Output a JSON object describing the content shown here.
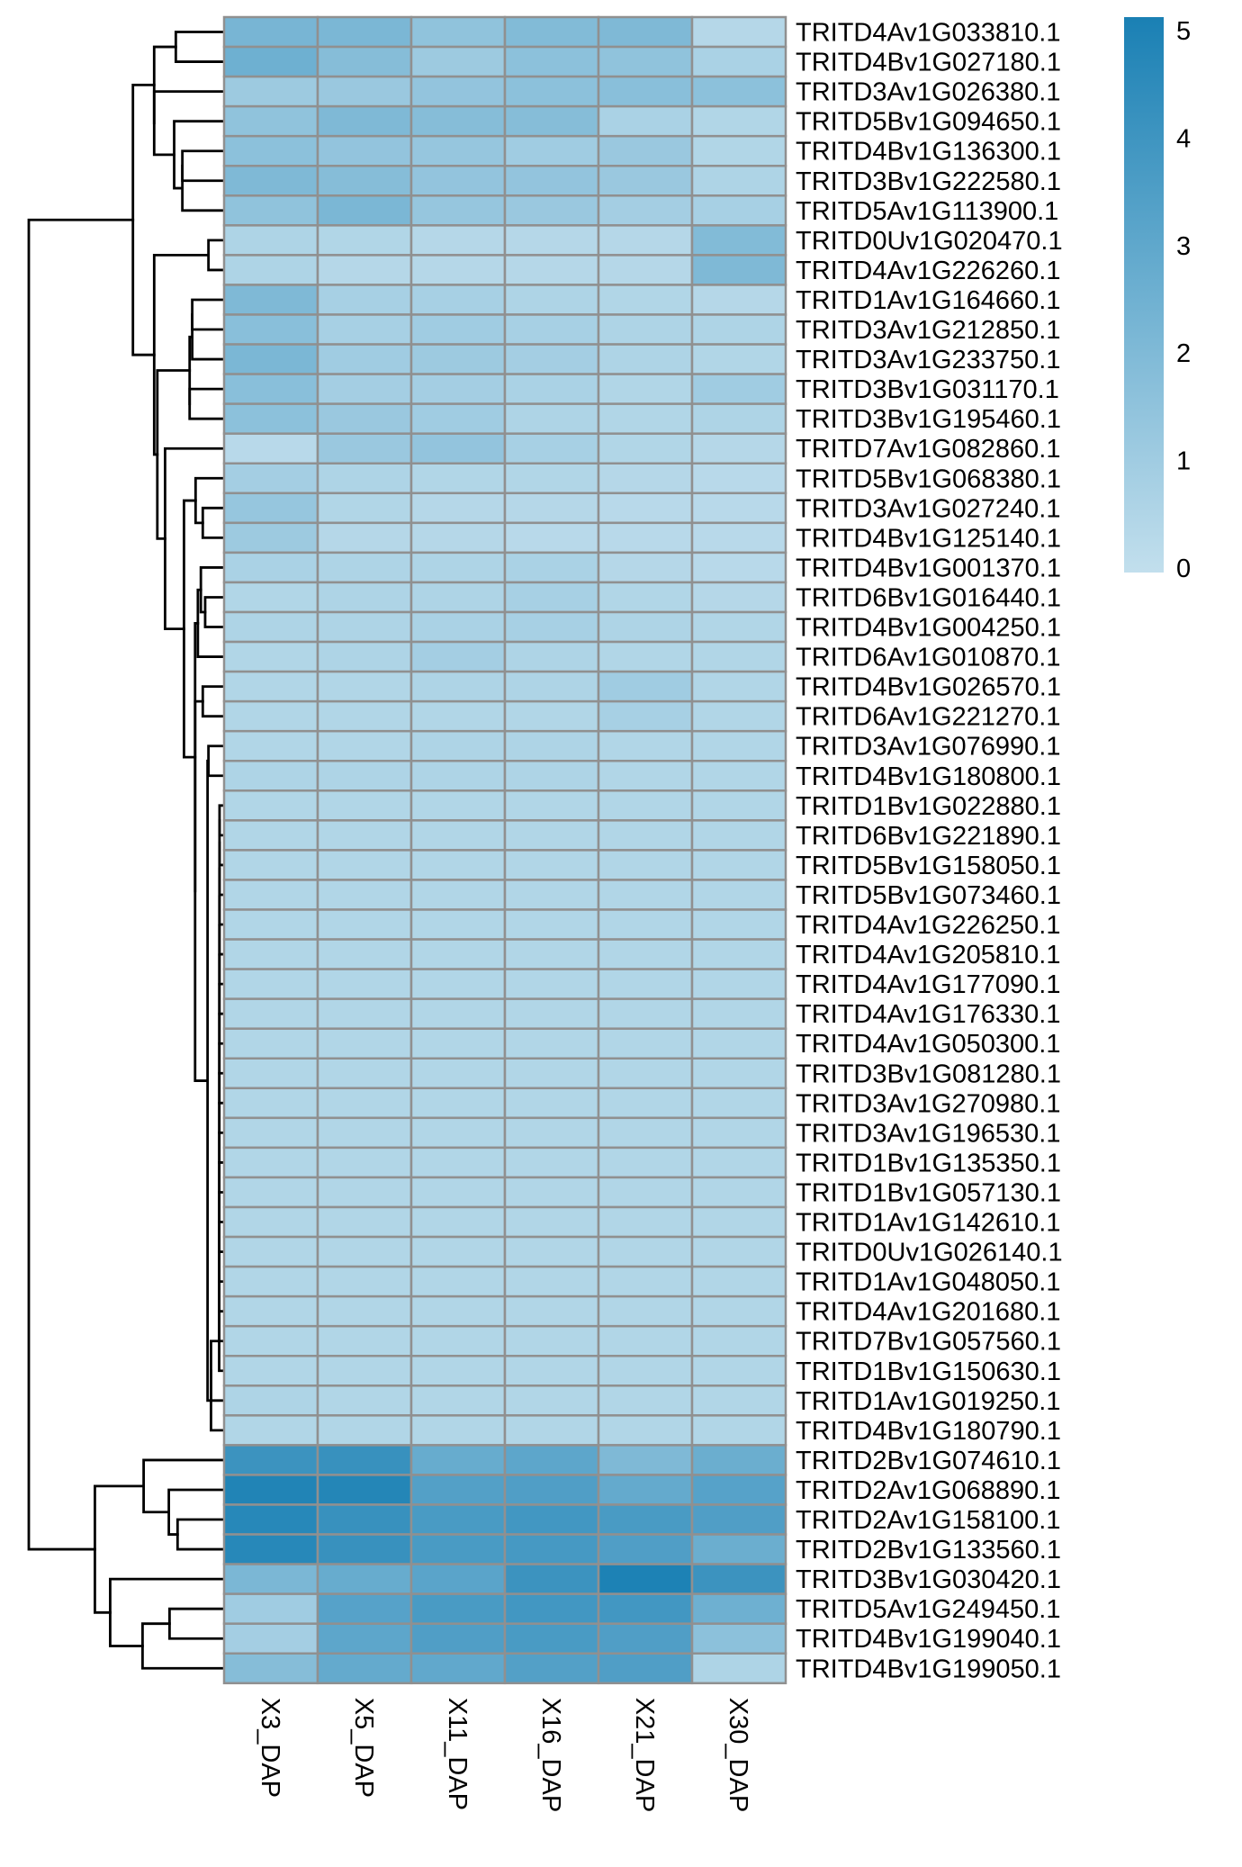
{
  "chart_data": {
    "type": "heatmap",
    "columns": [
      "X3_DAP",
      "X5_DAP",
      "X11_DAP",
      "X16_DAP",
      "X21_DAP",
      "X30_DAP"
    ],
    "rows": [
      "TRITD4Av1G033810.1",
      "TRITD4Bv1G027180.1",
      "TRITD3Av1G026380.1",
      "TRITD5Bv1G094650.1",
      "TRITD4Bv1G136300.1",
      "TRITD3Bv1G222580.1",
      "TRITD5Av1G113900.1",
      "TRITD0Uv1G020470.1",
      "TRITD4Av1G226260.1",
      "TRITD1Av1G164660.1",
      "TRITD3Av1G212850.1",
      "TRITD3Av1G233750.1",
      "TRITD3Bv1G031170.1",
      "TRITD3Bv1G195460.1",
      "TRITD7Av1G082860.1",
      "TRITD5Bv1G068380.1",
      "TRITD3Av1G027240.1",
      "TRITD4Bv1G125140.1",
      "TRITD4Bv1G001370.1",
      "TRITD6Bv1G016440.1",
      "TRITD4Bv1G004250.1",
      "TRITD6Av1G010870.1",
      "TRITD4Bv1G026570.1",
      "TRITD6Av1G221270.1",
      "TRITD3Av1G076990.1",
      "TRITD4Bv1G180800.1",
      "TRITD1Bv1G022880.1",
      "TRITD6Bv1G221890.1",
      "TRITD5Bv1G158050.1",
      "TRITD5Bv1G073460.1",
      "TRITD4Av1G226250.1",
      "TRITD4Av1G205810.1",
      "TRITD4Av1G177090.1",
      "TRITD4Av1G176330.1",
      "TRITD4Av1G050300.1",
      "TRITD3Bv1G081280.1",
      "TRITD3Av1G270980.1",
      "TRITD3Av1G196530.1",
      "TRITD1Bv1G135350.1",
      "TRITD1Bv1G057130.1",
      "TRITD1Av1G142610.1",
      "TRITD0Uv1G026140.1",
      "TRITD1Av1G048050.1",
      "TRITD4Av1G201680.1",
      "TRITD7Bv1G057560.1",
      "TRITD1Bv1G150630.1",
      "TRITD1Av1G019250.1",
      "TRITD4Bv1G180790.1",
      "TRITD2Bv1G074610.1",
      "TRITD2Av1G068890.1",
      "TRITD2Av1G158100.1",
      "TRITD2Bv1G133560.1",
      "TRITD3Bv1G030420.1",
      "TRITD5Av1G249450.1",
      "TRITD4Bv1G199040.1",
      "TRITD4Bv1G199050.1"
    ],
    "values": [
      [
        2.2,
        2.1,
        1.5,
        1.9,
        2.0,
        0.4
      ],
      [
        2.5,
        1.8,
        1.1,
        1.6,
        1.5,
        0.7
      ],
      [
        1.1,
        1.2,
        1.4,
        1.6,
        1.7,
        1.6
      ],
      [
        1.5,
        2.0,
        1.8,
        1.8,
        0.7,
        0.5
      ],
      [
        1.6,
        1.4,
        1.3,
        1.0,
        1.2,
        0.5
      ],
      [
        2.0,
        1.8,
        1.4,
        1.4,
        1.2,
        0.6
      ],
      [
        1.5,
        2.1,
        1.3,
        1.2,
        0.9,
        0.8
      ],
      [
        0.6,
        0.5,
        0.4,
        0.4,
        0.4,
        1.9
      ],
      [
        0.6,
        0.4,
        0.4,
        0.4,
        0.4,
        2.0
      ],
      [
        2.0,
        0.8,
        0.8,
        0.6,
        0.5,
        0.4
      ],
      [
        1.7,
        0.8,
        1.0,
        0.8,
        0.6,
        0.6
      ],
      [
        2.1,
        1.0,
        1.1,
        0.9,
        0.6,
        0.5
      ],
      [
        1.7,
        0.9,
        0.9,
        0.7,
        0.5,
        1.0
      ],
      [
        1.6,
        1.2,
        1.0,
        0.6,
        0.5,
        0.6
      ],
      [
        0.3,
        1.2,
        1.4,
        0.8,
        0.5,
        0.4
      ],
      [
        0.9,
        0.6,
        0.5,
        0.5,
        0.4,
        0.3
      ],
      [
        1.3,
        0.5,
        0.4,
        0.4,
        0.3,
        0.3
      ],
      [
        1.1,
        0.4,
        0.4,
        0.3,
        0.3,
        0.3
      ],
      [
        0.7,
        0.6,
        0.6,
        0.7,
        0.4,
        0.3
      ],
      [
        0.5,
        0.6,
        0.6,
        0.8,
        0.5,
        0.4
      ],
      [
        0.6,
        0.6,
        0.7,
        0.8,
        0.6,
        0.5
      ],
      [
        0.5,
        0.6,
        0.9,
        0.6,
        0.5,
        0.5
      ],
      [
        0.5,
        0.5,
        0.6,
        0.6,
        1.0,
        0.5
      ],
      [
        0.5,
        0.5,
        0.5,
        0.5,
        0.8,
        0.5
      ],
      [
        0.5,
        0.5,
        0.6,
        0.6,
        0.5,
        0.5
      ],
      [
        0.6,
        0.6,
        0.6,
        0.6,
        0.5,
        0.5
      ],
      [
        0.5,
        0.5,
        0.5,
        0.5,
        0.5,
        0.5
      ],
      [
        0.5,
        0.5,
        0.5,
        0.5,
        0.5,
        0.5
      ],
      [
        0.5,
        0.5,
        0.5,
        0.5,
        0.5,
        0.5
      ],
      [
        0.5,
        0.5,
        0.5,
        0.5,
        0.5,
        0.5
      ],
      [
        0.5,
        0.5,
        0.5,
        0.5,
        0.5,
        0.5
      ],
      [
        0.5,
        0.5,
        0.5,
        0.5,
        0.5,
        0.5
      ],
      [
        0.5,
        0.5,
        0.5,
        0.5,
        0.5,
        0.5
      ],
      [
        0.5,
        0.5,
        0.5,
        0.5,
        0.5,
        0.5
      ],
      [
        0.5,
        0.5,
        0.5,
        0.5,
        0.5,
        0.5
      ],
      [
        0.5,
        0.5,
        0.5,
        0.5,
        0.5,
        0.5
      ],
      [
        0.5,
        0.5,
        0.5,
        0.5,
        0.5,
        0.5
      ],
      [
        0.5,
        0.5,
        0.5,
        0.5,
        0.5,
        0.5
      ],
      [
        0.5,
        0.5,
        0.5,
        0.5,
        0.5,
        0.5
      ],
      [
        0.5,
        0.5,
        0.5,
        0.5,
        0.5,
        0.5
      ],
      [
        0.5,
        0.5,
        0.5,
        0.5,
        0.5,
        0.5
      ],
      [
        0.5,
        0.5,
        0.5,
        0.5,
        0.5,
        0.5
      ],
      [
        0.5,
        0.5,
        0.5,
        0.5,
        0.5,
        0.5
      ],
      [
        0.5,
        0.5,
        0.5,
        0.5,
        0.5,
        0.5
      ],
      [
        0.5,
        0.5,
        0.5,
        0.5,
        0.5,
        0.5
      ],
      [
        0.5,
        0.5,
        0.5,
        0.5,
        0.5,
        0.5
      ],
      [
        0.6,
        0.5,
        0.5,
        0.5,
        0.5,
        0.5
      ],
      [
        0.5,
        0.5,
        0.5,
        0.5,
        0.5,
        0.5
      ],
      [
        4.0,
        4.1,
        2.7,
        3.0,
        2.0,
        2.6
      ],
      [
        4.8,
        4.7,
        3.3,
        3.4,
        2.8,
        3.2
      ],
      [
        4.6,
        4.1,
        3.6,
        3.8,
        3.6,
        3.4
      ],
      [
        4.6,
        4.1,
        3.6,
        3.7,
        3.4,
        2.6
      ],
      [
        2.1,
        2.7,
        3.1,
        4.0,
        4.9,
        4.0
      ],
      [
        1.0,
        3.2,
        3.6,
        3.8,
        3.8,
        2.5
      ],
      [
        0.9,
        3.0,
        3.4,
        3.6,
        3.4,
        1.6
      ],
      [
        1.8,
        2.8,
        2.9,
        3.3,
        3.4,
        0.6
      ]
    ],
    "color_scale": {
      "min": 0,
      "max": 5,
      "low_color": "#c2dfed",
      "high_color": "#1a80b4",
      "ticks": [
        "0",
        "1",
        "2",
        "3",
        "4",
        "5"
      ]
    },
    "legend_position": "top-right",
    "row_dendrogram": true,
    "title": "",
    "xlabel": "",
    "ylabel": ""
  }
}
